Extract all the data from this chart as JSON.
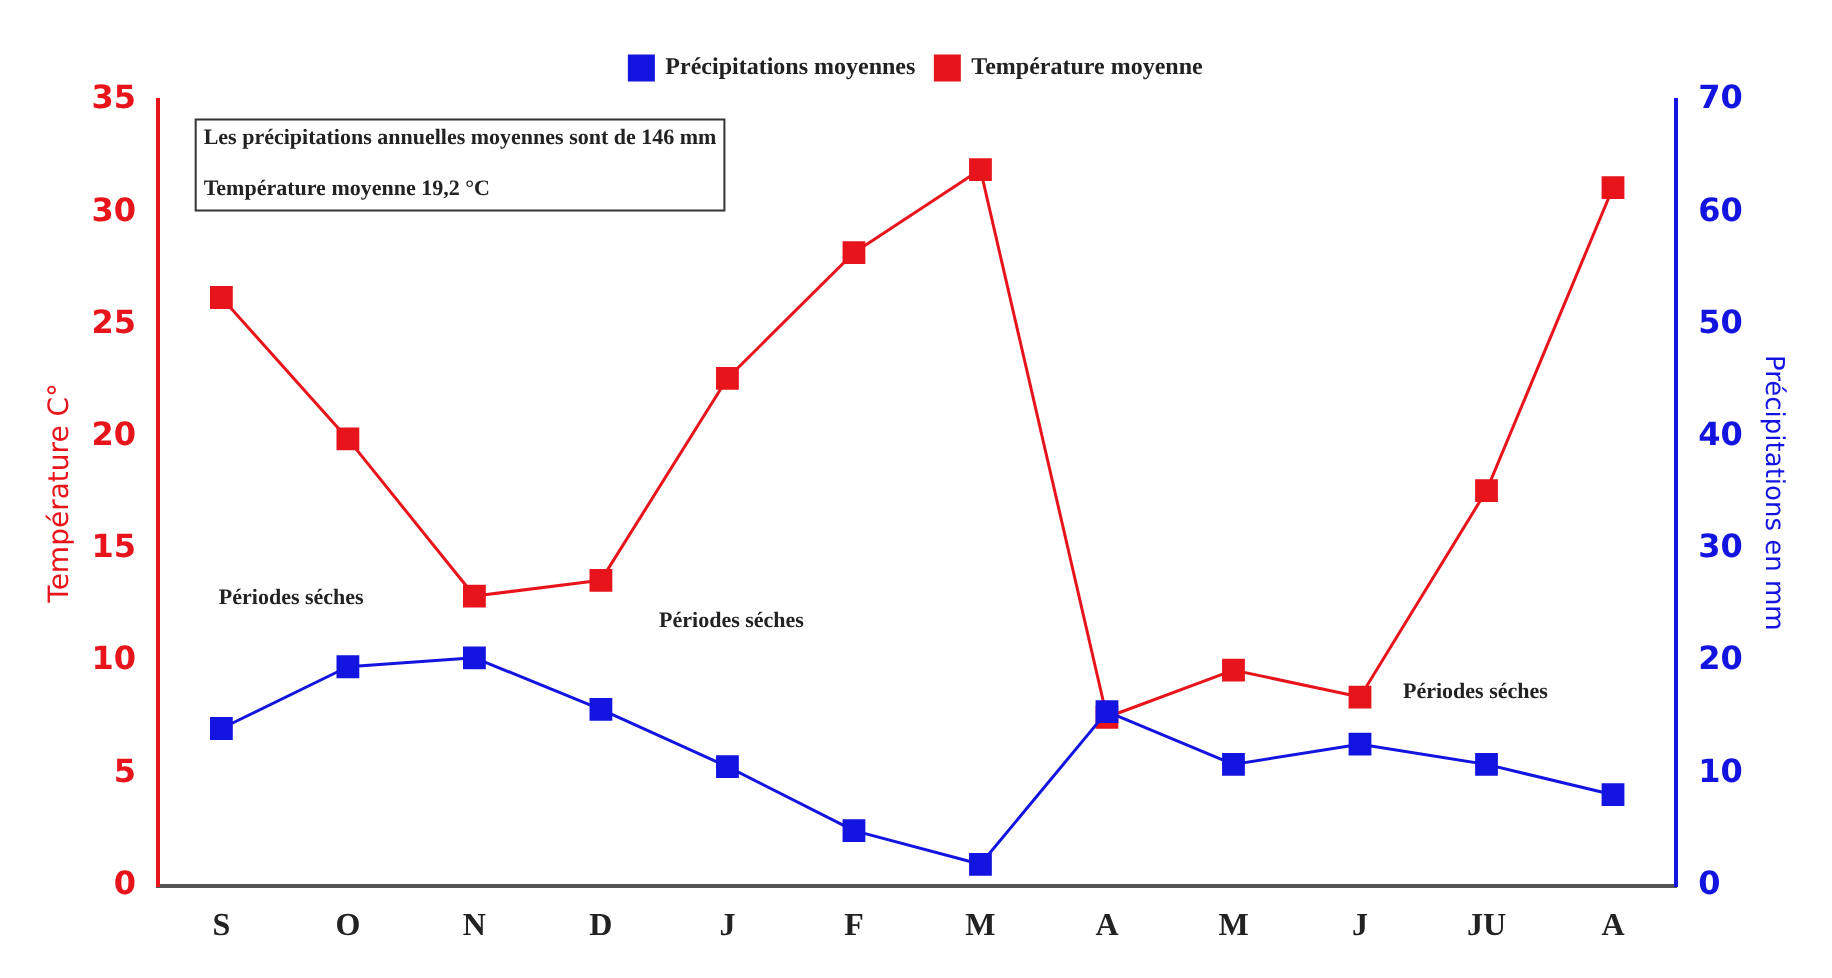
{
  "chart_data": {
    "type": "line",
    "categories": [
      "S",
      "O",
      "N",
      "D",
      "J",
      "F",
      "M",
      "A",
      "M",
      "J",
      "JU",
      "A"
    ],
    "series": [
      {
        "name": "Température moyenne",
        "color": "#e8141b",
        "values": [
          26.2,
          19.9,
          12.9,
          13.6,
          22.6,
          28.2,
          31.9,
          7.5,
          9.6,
          8.4,
          17.6,
          31.1
        ]
      },
      {
        "name": "Précipitations moyennes",
        "color": "#1414e0",
        "axis": "y2",
        "values": [
          14,
          19.5,
          20.3,
          15.7,
          10.6,
          4.9,
          1.9,
          15.5,
          10.8,
          12.6,
          10.8,
          8.1
        ]
      }
    ],
    "ylabel": "Température C°",
    "y2label": "Précipitations en mm",
    "ylim": [
      0,
      35
    ],
    "yticks": [
      0,
      5,
      10,
      15,
      20,
      25,
      30,
      35
    ],
    "y2lim": [
      0,
      70
    ],
    "y2ticks": [
      0,
      10,
      20,
      30,
      40,
      50,
      60,
      70
    ],
    "annotations": [
      "Les précipitations annuelles moyennes sont de 146 mm",
      "Température moyenne 19,2 °C",
      "Périodes séches",
      "Périodes séches",
      "Périodes séches"
    ],
    "marker": "square",
    "line_style": "solid",
    "grid": false,
    "legend": "top"
  }
}
